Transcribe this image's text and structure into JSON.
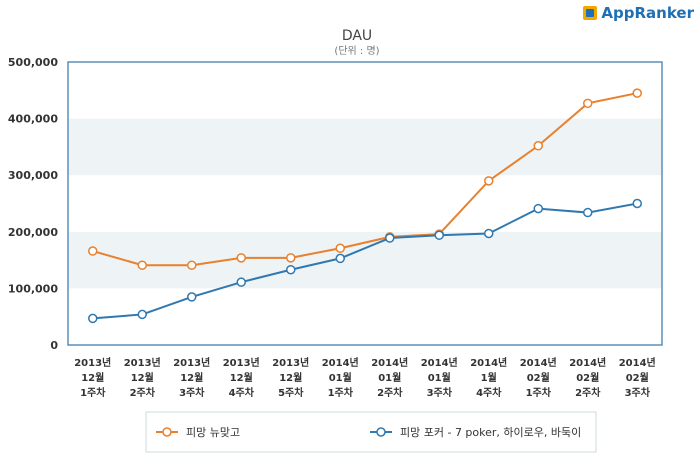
{
  "brand": {
    "name": "AppRanker",
    "logo_icon": "appranker-logo-icon"
  },
  "colors": {
    "series1": "#e8802d",
    "series2": "#2f78b0",
    "band": "#eef3f6",
    "axis": "#5b8fb9"
  },
  "chart_data": {
    "type": "line",
    "title": "DAU",
    "subtitle": "(단위 : 명)",
    "xlabel": "",
    "ylabel": "",
    "ylim": [
      0,
      500000
    ],
    "yticks": [
      "0",
      "100,000",
      "200,000",
      "300,000",
      "400,000",
      "500,000"
    ],
    "categories": [
      [
        "2013년",
        "12월",
        "1주차"
      ],
      [
        "2013년",
        "12월",
        "2주차"
      ],
      [
        "2013년",
        "12월",
        "3주차"
      ],
      [
        "2013년",
        "12월",
        "4주차"
      ],
      [
        "2013년",
        "12월",
        "5주차"
      ],
      [
        "2014년",
        "01월",
        "1주차"
      ],
      [
        "2014년",
        "01월",
        "2주차"
      ],
      [
        "2014년",
        "01월",
        "3주차"
      ],
      [
        "2014년",
        "1월",
        "4주차"
      ],
      [
        "2014년",
        "02월",
        "1주차"
      ],
      [
        "2014년",
        "02월",
        "2주차"
      ],
      [
        "2014년",
        "02월",
        "3주차"
      ]
    ],
    "series": [
      {
        "name": "피망 뉴맞고",
        "color": "#e8802d",
        "values": [
          166000,
          141000,
          141000,
          154000,
          154000,
          171000,
          191000,
          196000,
          290000,
          352000,
          427000,
          445000
        ]
      },
      {
        "name": "피망 포커 - 7 poker, 하이로우, 바둑이",
        "color": "#2f78b0",
        "values": [
          47000,
          54000,
          85000,
          111000,
          133000,
          153000,
          189000,
          194000,
          197000,
          241000,
          234000,
          250000
        ]
      }
    ],
    "legend_position": "bottom",
    "grid": true
  }
}
